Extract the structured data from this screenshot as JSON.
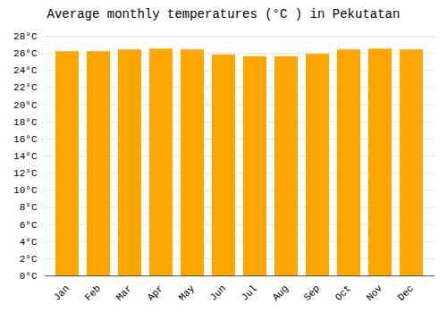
{
  "chart_data": {
    "type": "bar",
    "title": "Average monthly temperatures (°C ) in Pekutatan",
    "categories": [
      "Jan",
      "Feb",
      "Mar",
      "Apr",
      "May",
      "Jun",
      "Jul",
      "Aug",
      "Sep",
      "Oct",
      "Nov",
      "Dec"
    ],
    "values": [
      26.2,
      26.2,
      26.4,
      26.5,
      26.4,
      25.8,
      25.6,
      25.6,
      25.9,
      26.4,
      26.5,
      26.4
    ],
    "color": "#FFA500",
    "ylim": [
      0,
      28
    ],
    "yticks": [
      {
        "value": 0,
        "label": "0°C"
      },
      {
        "value": 2,
        "label": "2°C"
      },
      {
        "value": 4,
        "label": "4°C"
      },
      {
        "value": 6,
        "label": "6°C"
      },
      {
        "value": 8,
        "label": "8°C"
      },
      {
        "value": 10,
        "label": "10°C"
      },
      {
        "value": 12,
        "label": "12°C"
      },
      {
        "value": 14,
        "label": "14°C"
      },
      {
        "value": 16,
        "label": "16°C"
      },
      {
        "value": 18,
        "label": "18°C"
      },
      {
        "value": 20,
        "label": "20°C"
      },
      {
        "value": 22,
        "label": "22°C"
      },
      {
        "value": 24,
        "label": "24°C"
      },
      {
        "value": 26,
        "label": "26°C"
      },
      {
        "value": 28,
        "label": "28°C"
      }
    ],
    "grid": true
  }
}
